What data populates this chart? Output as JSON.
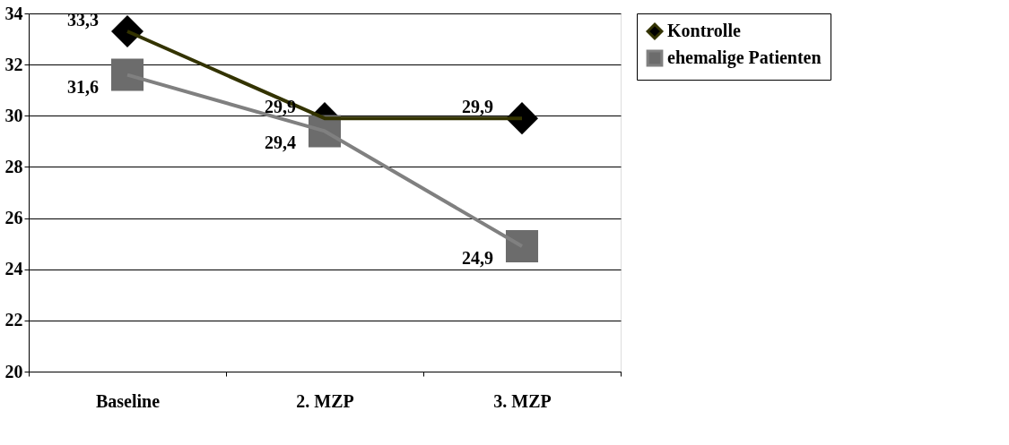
{
  "chart_data": {
    "type": "line",
    "categories": [
      "Baseline",
      "2. MZP",
      "3. MZP"
    ],
    "series": [
      {
        "name": "Kontrolle",
        "color": "#333300",
        "marker": "diamond",
        "values": [
          33.3,
          29.9,
          29.9
        ],
        "value_labels": [
          "33,3",
          "29,9",
          "29,9"
        ]
      },
      {
        "name": "ehemalige Patienten",
        "color": "#808080",
        "marker": "square",
        "values": [
          31.6,
          29.4,
          24.9
        ],
        "value_labels": [
          "31,6",
          "29,4",
          "24,9"
        ]
      }
    ],
    "ylim": [
      20,
      34
    ],
    "yticks": [
      20,
      22,
      24,
      26,
      28,
      30,
      32,
      34
    ],
    "grid": "y",
    "legend": "right",
    "line_style": "solid"
  }
}
